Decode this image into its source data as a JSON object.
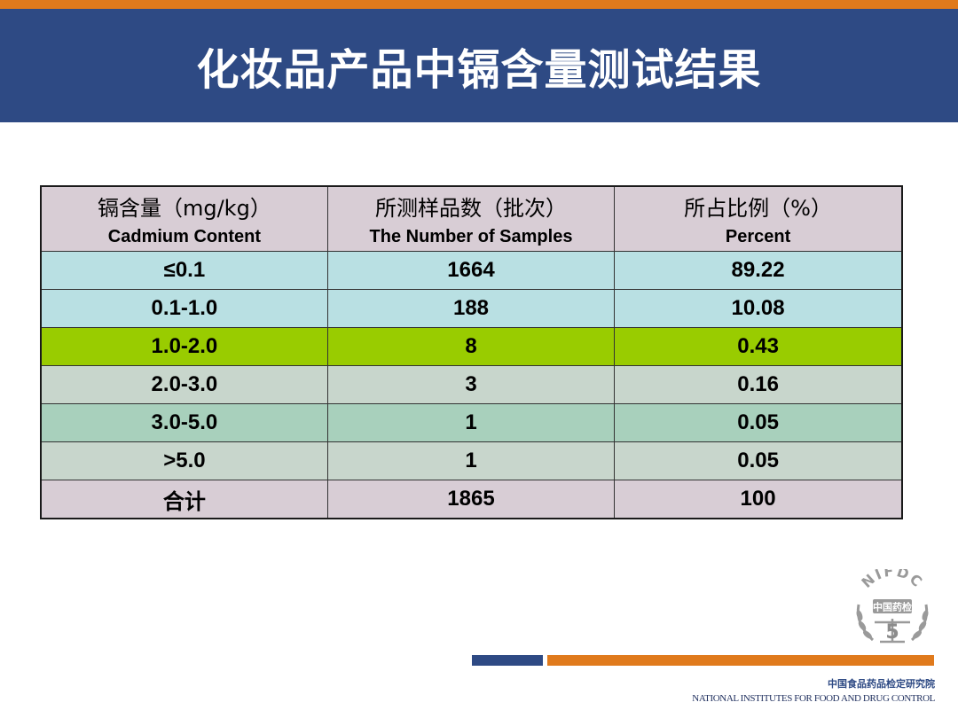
{
  "slide": {
    "title": "化妆品产品中镉含量测试结果"
  },
  "table": {
    "headers": [
      {
        "cn": "镉含量（mg/kg）",
        "en": "Cadmium Content"
      },
      {
        "cn": "所测样品数（批次）",
        "en": "The Number of Samples"
      },
      {
        "cn": "所占比例（%）",
        "en": "Percent"
      }
    ],
    "rows": [
      {
        "range": "≤0.1",
        "samples": "1664",
        "percent": "89.22",
        "bg": "#b9e0e3"
      },
      {
        "range": "0.1-1.0",
        "samples": "188",
        "percent": "10.08",
        "bg": "#b9e0e3"
      },
      {
        "range": "1.0-2.0",
        "samples": "8",
        "percent": "0.43",
        "bg": "#99cc00"
      },
      {
        "range": "2.0-3.0",
        "samples": "3",
        "percent": "0.16",
        "bg": "#c8d6cc"
      },
      {
        "range": "3.0-5.0",
        "samples": "1",
        "percent": "0.05",
        "bg": "#a8d0bc"
      },
      {
        "range": ">5.0",
        "samples": "1",
        "percent": "0.05",
        "bg": "#c8d6cc"
      }
    ],
    "total": {
      "label": "合计",
      "samples": "1865",
      "percent": "100",
      "bg": "#d8cdd5"
    }
  },
  "logo": {
    "acronym": "NIFDC",
    "cn_name": "中国药检",
    "number": "5"
  },
  "footer": {
    "cn": "中国食品药品检定研究院",
    "en": "NATIONAL INSTITUTES FOR FOOD AND DRUG CONTROL"
  },
  "colors": {
    "brand_blue": "#2e4a84",
    "accent_orange": "#e07a1c"
  }
}
